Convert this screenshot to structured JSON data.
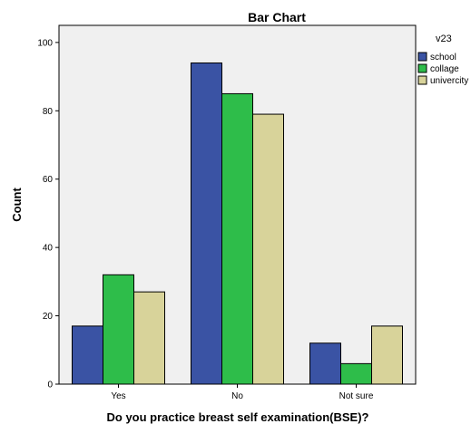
{
  "chart_data": {
    "type": "bar",
    "title": "Bar Chart",
    "xlabel": "Do you practice breast self examination(BSE)?",
    "ylabel": "Count",
    "categories": [
      "Yes",
      "No",
      "Not sure"
    ],
    "series": [
      {
        "name": "school",
        "color": "#3a53a4",
        "values": [
          17,
          94,
          12
        ]
      },
      {
        "name": "collage",
        "color": "#2ebd4a",
        "values": [
          32,
          85,
          6
        ]
      },
      {
        "name": "univercity",
        "color": "#d8d39a",
        "values": [
          27,
          79,
          17
        ]
      }
    ],
    "ylim": [
      0,
      105
    ],
    "yticks": [
      "0",
      "20",
      "40",
      "60",
      "80",
      "100"
    ],
    "legend_title": "v23",
    "legend_position": "right",
    "plot_background": "#f0f0f0",
    "grid": false
  }
}
